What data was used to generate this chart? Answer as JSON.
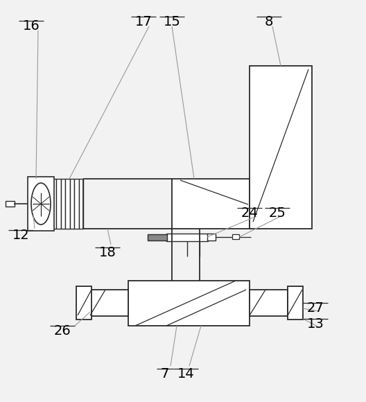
{
  "background_color": "#f2f2f2",
  "line_color": "#2a2a2a",
  "label_color": "#000000",
  "fig_width": 5.28,
  "fig_height": 5.8,
  "label_fs": 14,
  "leader_lw": 0.9,
  "draw_lw": 1.3
}
